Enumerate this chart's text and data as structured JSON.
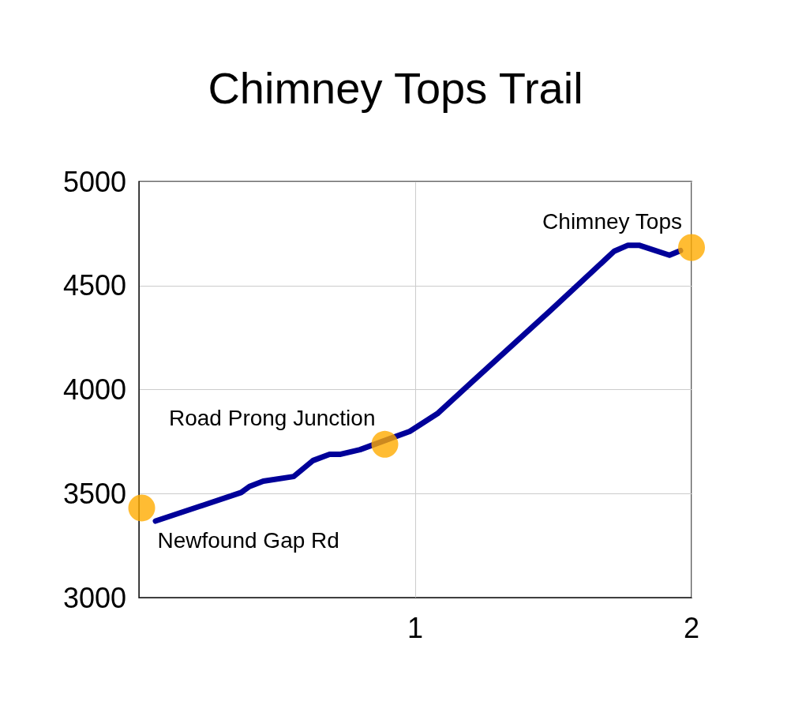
{
  "chart_data": {
    "type": "line",
    "title": "Chimney Tops Trail",
    "xlim": [
      0,
      2
    ],
    "xticks": [
      1,
      2
    ],
    "ylim": [
      3000,
      5000
    ],
    "yticks": [
      3000,
      3500,
      4000,
      4500,
      5000
    ],
    "grid": true,
    "series": [
      {
        "color": "#000099",
        "x": [
          0.06,
          0.37,
          0.4,
          0.45,
          0.56,
          0.63,
          0.69,
          0.73,
          0.8,
          0.98,
          1.08,
          1.21,
          1.49,
          1.72,
          1.77,
          1.81,
          1.92,
          1.96
        ],
        "values": [
          3368,
          3505,
          3534,
          3560,
          3582,
          3659,
          3689,
          3689,
          3711,
          3799,
          3884,
          4042,
          4381,
          4665,
          4694,
          4694,
          4646,
          4668
        ]
      },
      {
        "type": "scatter",
        "color": "#ffab00",
        "marker": "circle",
        "x": [
          0.01,
          0.89,
          2.0
        ],
        "values": [
          3431,
          3737,
          4683
        ]
      }
    ],
    "annotations": [
      {
        "text": "Newfound Gap Rd",
        "x": 0.01,
        "y": 3431
      },
      {
        "text": "Road Prong Junction",
        "x": 0.89,
        "y": 3737
      },
      {
        "text": "Chimney Tops",
        "x": 2.0,
        "y": 4683
      }
    ]
  }
}
